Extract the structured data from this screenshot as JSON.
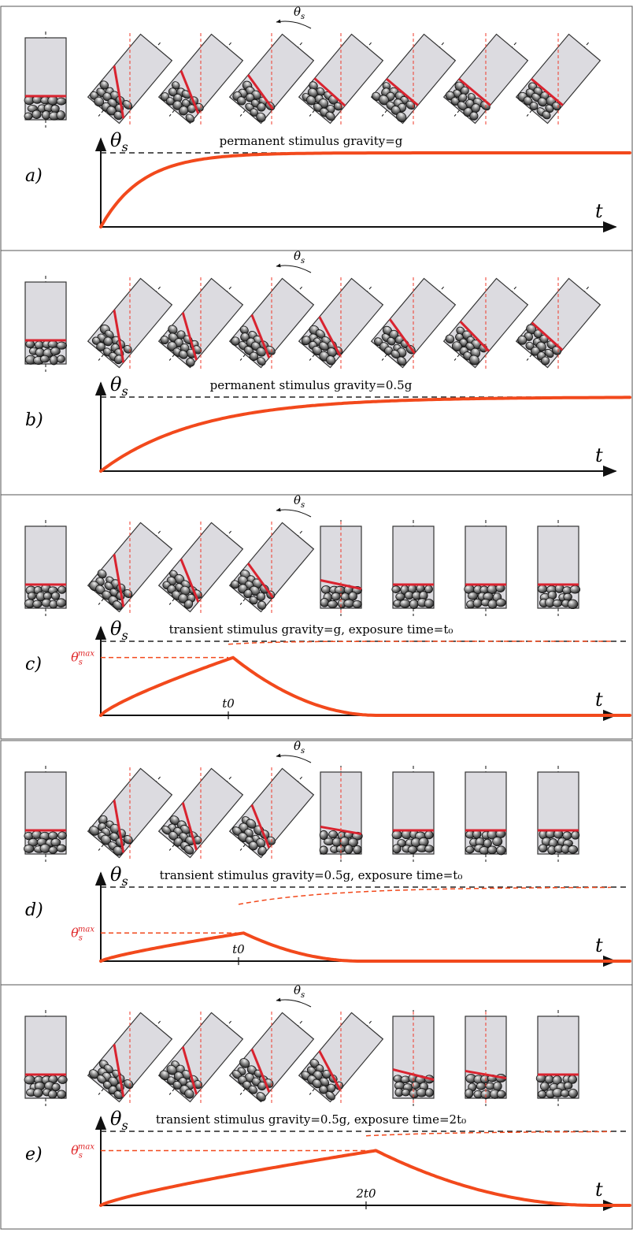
{
  "colors": {
    "curve": "#f2491c",
    "asymptote": "#222222",
    "surface": "#d9232f",
    "container": "#dcdbe0",
    "container_stroke": "#333333",
    "label_red": "#e0292b"
  },
  "symbols": {
    "theta": "θ",
    "theta_sub": "s",
    "theta_max_sup": "max",
    "time": "t"
  },
  "panels": [
    {
      "id": "a",
      "label": "a)",
      "caption": "permanent stimulus gravity=g",
      "transient": false,
      "t0_label": "",
      "show_theta_max": false,
      "theta_marker_tilted_index": 3,
      "frames": [
        {
          "tilt": 0,
          "surface_angle": 0
        },
        {
          "tilt": 40,
          "surface_angle": 40
        },
        {
          "tilt": 40,
          "surface_angle": 28
        },
        {
          "tilt": 40,
          "surface_angle": 14
        },
        {
          "tilt": 40,
          "surface_angle": 2
        },
        {
          "tilt": 40,
          "surface_angle": 0
        },
        {
          "tilt": 40,
          "surface_angle": 0
        },
        {
          "tilt": 40,
          "surface_angle": 0
        }
      ],
      "curve": {
        "kind": "saturating",
        "rate": 3.2
      }
    },
    {
      "id": "b",
      "label": "b)",
      "caption": "permanent stimulus gravity=0.5g",
      "transient": false,
      "t0_label": "",
      "show_theta_max": false,
      "theta_marker_tilted_index": 3,
      "frames": [
        {
          "tilt": 0,
          "surface_angle": 0
        },
        {
          "tilt": 40,
          "surface_angle": 40
        },
        {
          "tilt": 40,
          "surface_angle": 34
        },
        {
          "tilt": 40,
          "surface_angle": 28
        },
        {
          "tilt": 40,
          "surface_angle": 22
        },
        {
          "tilt": 40,
          "surface_angle": 14
        },
        {
          "tilt": 40,
          "surface_angle": 6
        },
        {
          "tilt": 40,
          "surface_angle": 2
        }
      ],
      "curve": {
        "kind": "saturating",
        "rate": 1.35
      }
    },
    {
      "id": "c",
      "label": "c)",
      "caption": "transient stimulus gravity=g, exposure time=t₀",
      "transient": true,
      "t0_label": "t0",
      "show_theta_max": true,
      "theta_marker_tilted_index": 3,
      "frames": [
        {
          "tilt": 0,
          "surface_angle": 0
        },
        {
          "tilt": 40,
          "surface_angle": 40
        },
        {
          "tilt": 40,
          "surface_angle": 28
        },
        {
          "tilt": 40,
          "surface_angle": 14
        },
        {
          "tilt": 0,
          "surface_angle": 12
        },
        {
          "tilt": 0,
          "surface_angle": 0
        },
        {
          "tilt": 0,
          "surface_angle": 0
        },
        {
          "tilt": 0,
          "surface_angle": 0
        }
      ],
      "curve": {
        "kind": "transient",
        "rate": 3.2,
        "t0": 0.25,
        "decay_end": 0.52,
        "theta_max": 0.78
      }
    },
    {
      "id": "d",
      "label": "d)",
      "caption": "transient stimulus gravity=0.5g, exposure time=t₀",
      "transient": true,
      "t0_label": "t0",
      "show_theta_max": true,
      "theta_marker_tilted_index": 3,
      "frames": [
        {
          "tilt": 0,
          "surface_angle": 0
        },
        {
          "tilt": 40,
          "surface_angle": 40
        },
        {
          "tilt": 40,
          "surface_angle": 34
        },
        {
          "tilt": 40,
          "surface_angle": 28
        },
        {
          "tilt": 0,
          "surface_angle": 10
        },
        {
          "tilt": 0,
          "surface_angle": 0
        },
        {
          "tilt": 0,
          "surface_angle": 0
        },
        {
          "tilt": 0,
          "surface_angle": 0
        }
      ],
      "curve": {
        "kind": "transient",
        "rate": 1.35,
        "t0": 0.27,
        "decay_end": 0.49,
        "theta_max": 0.38
      }
    },
    {
      "id": "e",
      "label": "e)",
      "caption": "transient stimulus gravity=0.5g, exposure time=2t₀",
      "transient": true,
      "t0_label": "2t0",
      "show_theta_max": true,
      "theta_marker_tilted_index": 3,
      "frames": [
        {
          "tilt": 0,
          "surface_angle": 0
        },
        {
          "tilt": 40,
          "surface_angle": 40
        },
        {
          "tilt": 40,
          "surface_angle": 34
        },
        {
          "tilt": 40,
          "surface_angle": 28
        },
        {
          "tilt": 40,
          "surface_angle": 22
        },
        {
          "tilt": 0,
          "surface_angle": 14
        },
        {
          "tilt": 0,
          "surface_angle": 10
        },
        {
          "tilt": 0,
          "surface_angle": 0
        }
      ],
      "curve": {
        "kind": "transient",
        "rate": 1.35,
        "t0": 0.52,
        "decay_end": 0.93,
        "theta_max": 0.74
      }
    }
  ]
}
